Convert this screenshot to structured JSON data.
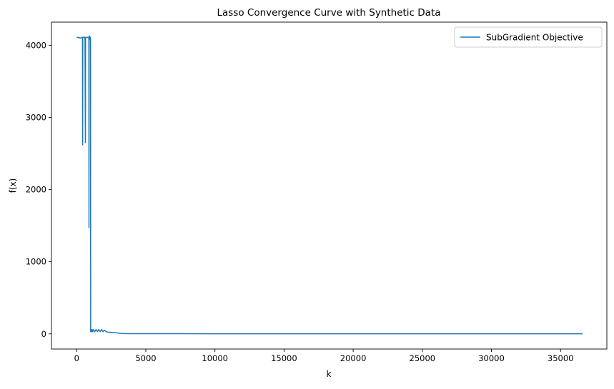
{
  "chart_data": {
    "type": "line",
    "title": "Lasso Convergence Curve with Synthetic Data",
    "xlabel": "k",
    "ylabel": "f(x)",
    "xlim": [
      -1825,
      38350
    ],
    "ylim": [
      -210,
      4320
    ],
    "xticks": [
      0,
      5000,
      10000,
      15000,
      20000,
      25000,
      30000,
      35000
    ],
    "yticks": [
      0,
      1000,
      2000,
      3000,
      4000
    ],
    "grid": false,
    "legend_position": "top-right",
    "color": "#1f77b4",
    "series": [
      {
        "name": "SubGradient Objective",
        "x": [
          0,
          150,
          300,
          420,
          430,
          440,
          450,
          600,
          630,
          640,
          650,
          800,
          880,
          890,
          900,
          920,
          940,
          960,
          980,
          1000,
          1010,
          1020,
          1050,
          1100,
          1150,
          1200,
          1300,
          1400,
          1500,
          1600,
          1700,
          1800,
          1900,
          2000,
          2200,
          2500,
          3000,
          3200,
          4000,
          10000,
          20000,
          30000,
          36600
        ],
        "y": [
          4110,
          4105,
          4100,
          4110,
          2620,
          4100,
          4110,
          4110,
          2650,
          4110,
          4105,
          4110,
          4100,
          1470,
          4130,
          4100,
          4120,
          4080,
          4110,
          4100,
          30,
          60,
          30,
          60,
          30,
          60,
          30,
          60,
          30,
          60,
          30,
          60,
          30,
          50,
          25,
          20,
          12,
          5,
          3,
          2,
          2,
          2,
          2
        ]
      }
    ]
  }
}
